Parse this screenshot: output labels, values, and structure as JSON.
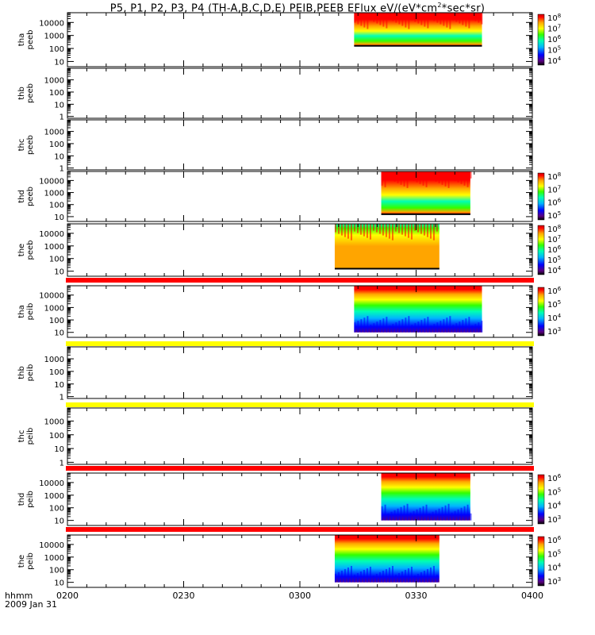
{
  "title": "P5, P1, P2, P3, P4 (TH-A,B,C,D,E) PEIB,PEEB EFlux eV/(eV*cm",
  "title_sup": "2",
  "title_end": "*sec*sr)",
  "time_axis": {
    "ticks": [
      "0200",
      "0230",
      "0300",
      "0330",
      "0400"
    ],
    "label": "hhmm",
    "date": "2009 Jan 31"
  },
  "colors": {
    "scale": [
      "#000000",
      "#5b007f",
      "#0000ff",
      "#00b4ff",
      "#00ffb4",
      "#32ff00",
      "#ffff00",
      "#ffa500",
      "#ff0000",
      "#c80000"
    ],
    "bar_red": "#ff0000",
    "bar_yellow": "#ffff00"
  },
  "chart_data": [
    {
      "type": "heatmap",
      "name": "tha peeb",
      "ylabel": [
        "tha",
        "peeb"
      ],
      "yticks": [
        "10",
        "100",
        "1000",
        "10000"
      ],
      "ymin": 1,
      "data": [
        {
          "t": [
            "0314",
            "0347"
          ],
          "ylow": 2.2,
          "zone": "peeb"
        }
      ],
      "cbar": [
        "10",
        "10",
        "10",
        "10",
        "10"
      ],
      "cbar_exp": [
        "4",
        "5",
        "6",
        "7",
        "8"
      ]
    },
    {
      "type": "heatmap",
      "name": "thb peeb",
      "ylabel": [
        "thb",
        "peeb"
      ],
      "yticks": [
        "1",
        "10",
        "100",
        "1000"
      ],
      "ymin": 0,
      "data": [],
      "cbar": null
    },
    {
      "type": "heatmap",
      "name": "thc peeb",
      "ylabel": [
        "thc",
        "peeb"
      ],
      "yticks": [
        "1",
        "10",
        "100",
        "1000"
      ],
      "ymin": 0,
      "data": [],
      "cbar": null
    },
    {
      "type": "heatmap",
      "name": "thd peeb",
      "ylabel": [
        "thd",
        "peeb"
      ],
      "yticks": [
        "10",
        "100",
        "1000",
        "10000"
      ],
      "ymin": 1,
      "data": [
        {
          "t": [
            "0321",
            "0344"
          ],
          "ylow": 1.2,
          "zone": "peeb"
        }
      ],
      "cbar": [
        "10",
        "10",
        "10",
        "10"
      ],
      "cbar_exp": [
        "5",
        "6",
        "7",
        "8"
      ]
    },
    {
      "type": "heatmap",
      "name": "the peeb",
      "ylabel": [
        "the",
        "peeb"
      ],
      "yticks": [
        "10",
        "100",
        "1000",
        "10000"
      ],
      "ymin": 1,
      "data": [
        {
          "t": [
            "0309",
            "0336"
          ],
          "ylow": 1.2,
          "zone": "the"
        }
      ],
      "cbar": [
        "10",
        "10",
        "10",
        "10",
        "10"
      ],
      "cbar_exp": [
        "4",
        "5",
        "6",
        "7",
        "8"
      ]
    },
    {
      "type": "heatmap",
      "name": "tha peib",
      "ylabel": [
        "tha",
        "peib"
      ],
      "yticks": [
        "10",
        "100",
        "1000",
        "10000"
      ],
      "ymin": 1,
      "data": [
        {
          "t": [
            "0314",
            "0347"
          ],
          "ylow": 1.0,
          "zone": "peib"
        }
      ],
      "cbar": [
        "10",
        "10",
        "10",
        "10"
      ],
      "cbar_exp": [
        "3",
        "4",
        "5",
        "6"
      ],
      "bar": "red"
    },
    {
      "type": "heatmap",
      "name": "thb peib",
      "ylabel": [
        "thb",
        "peib"
      ],
      "yticks": [
        "1",
        "10",
        "100",
        "1000"
      ],
      "ymin": 0,
      "data": [],
      "cbar": null,
      "bar": "yellow"
    },
    {
      "type": "heatmap",
      "name": "thc peib",
      "ylabel": [
        "thc",
        "peib"
      ],
      "yticks": [
        "1",
        "10",
        "100",
        "1000"
      ],
      "ymin": 0,
      "data": [],
      "cbar": null,
      "bar": "yellow"
    },
    {
      "type": "heatmap",
      "name": "thd peib",
      "ylabel": [
        "thd",
        "peib"
      ],
      "yticks": [
        "10",
        "100",
        "1000",
        "10000"
      ],
      "ymin": 1,
      "data": [
        {
          "t": [
            "0321",
            "0344"
          ],
          "ylow": 1.0,
          "zone": "peib"
        }
      ],
      "cbar": [
        "10",
        "10",
        "10",
        "10"
      ],
      "cbar_exp": [
        "3",
        "4",
        "5",
        "6"
      ],
      "bar": "red"
    },
    {
      "type": "heatmap",
      "name": "the peib",
      "ylabel": [
        "the",
        "peib"
      ],
      "yticks": [
        "10",
        "100",
        "1000",
        "10000"
      ],
      "ymin": 1,
      "data": [
        {
          "t": [
            "0309",
            "0336"
          ],
          "ylow": 1.0,
          "zone": "peib"
        }
      ],
      "cbar": [
        "10",
        "10",
        "10",
        "10"
      ],
      "cbar_exp": [
        "3",
        "4",
        "5",
        "6"
      ],
      "bar": "red"
    }
  ]
}
